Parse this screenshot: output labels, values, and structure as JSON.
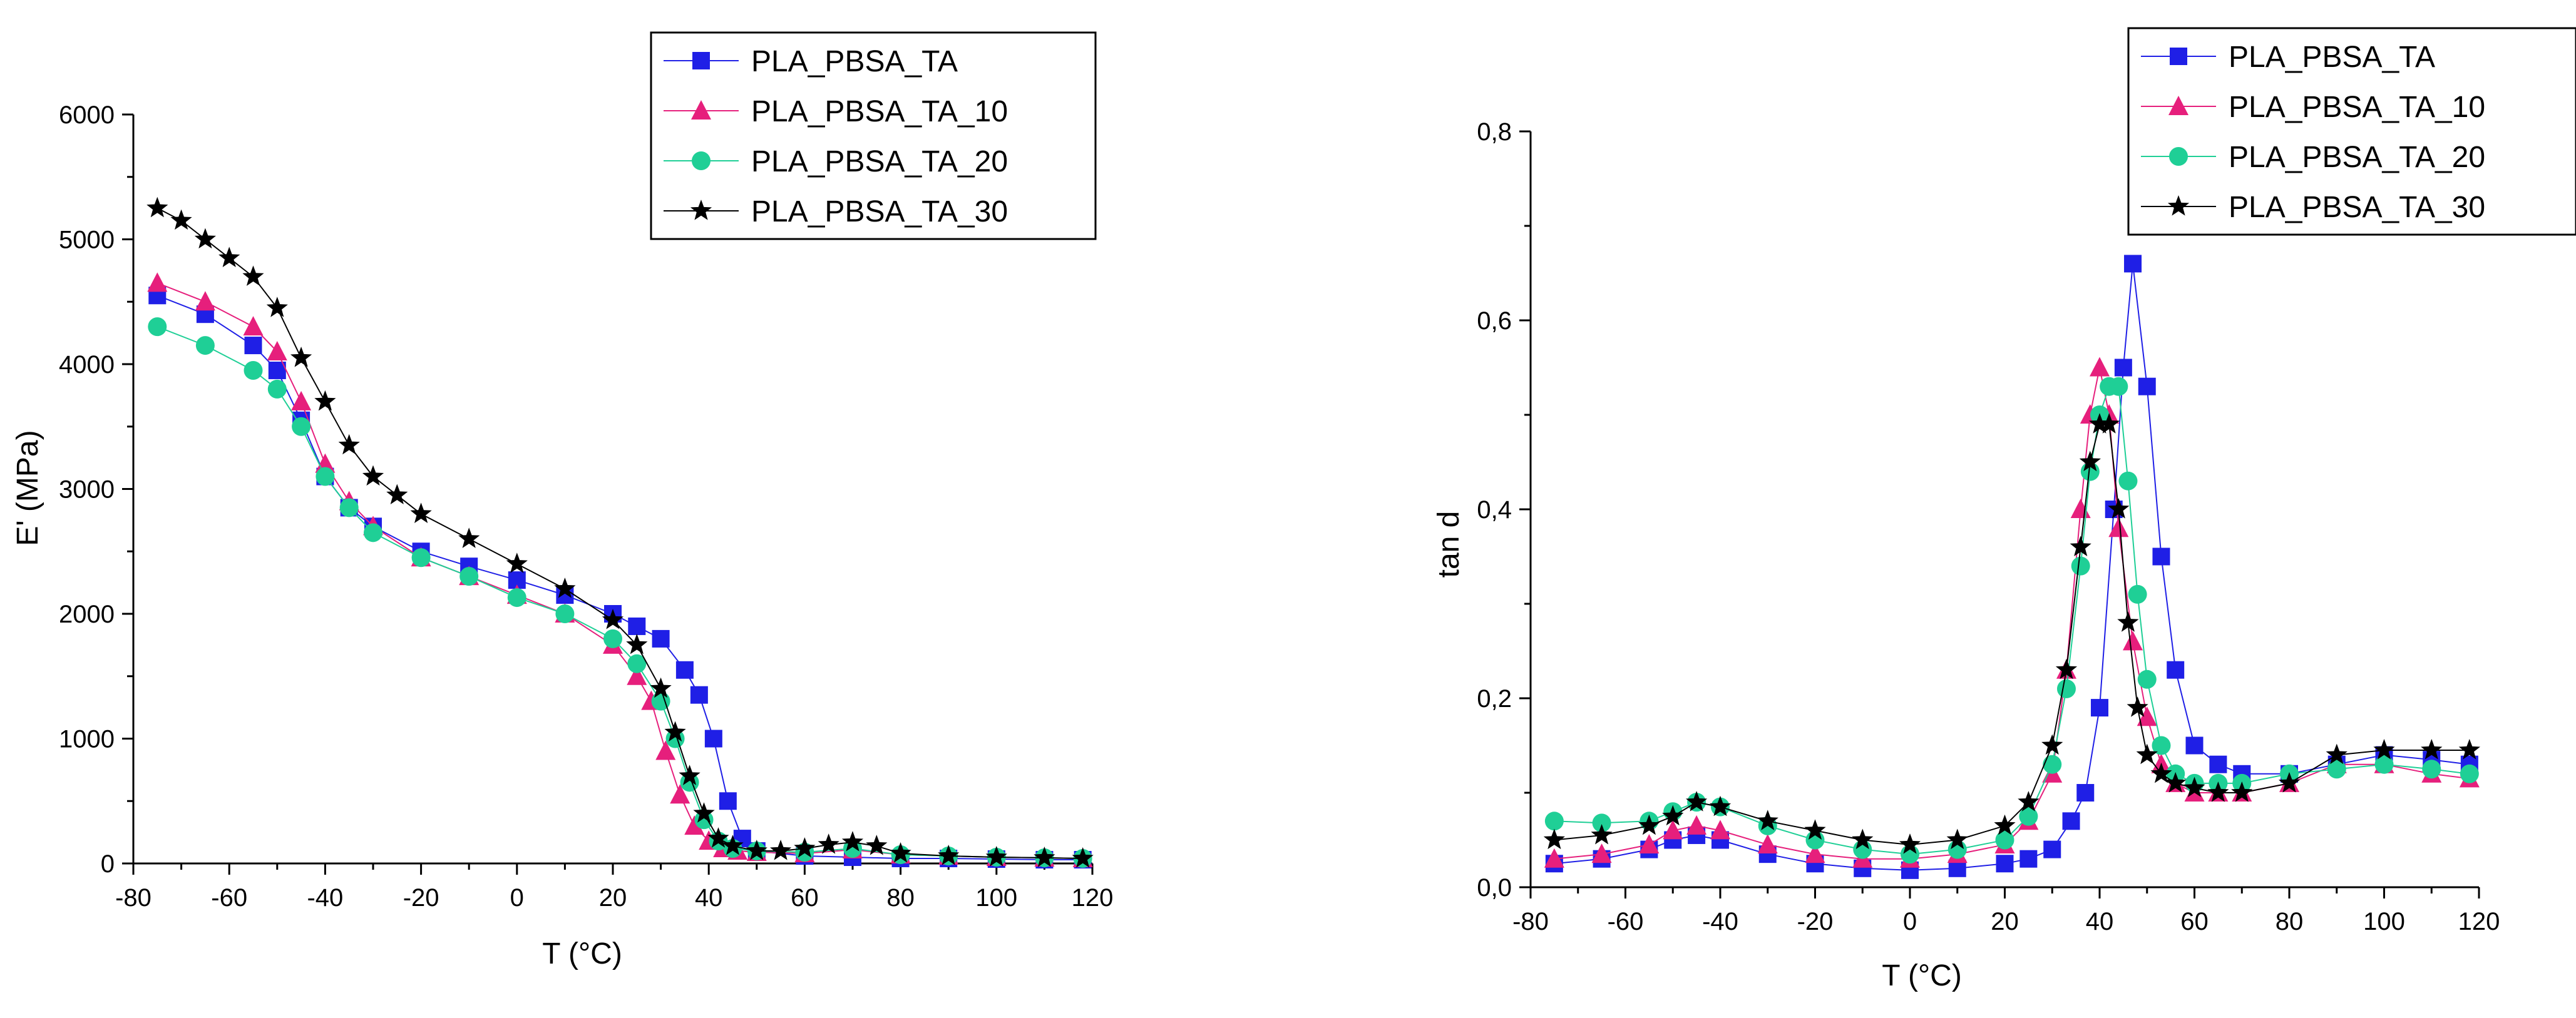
{
  "colors": {
    "PLA_PBSA_TA": "#1f1fe6",
    "PLA_PBSA_TA_10": "#e61f7c",
    "PLA_PBSA_TA_20": "#1fcf96",
    "PLA_PBSA_TA_30": "#000000"
  },
  "chart_data": [
    {
      "type": "line",
      "title": "",
      "xlabel": "T (°C)",
      "ylabel": "E' (MPa)",
      "xlim": [
        -80,
        120
      ],
      "ylim": [
        0,
        6000
      ],
      "xticks": [
        "-80",
        "-60",
        "-40",
        "-20",
        "0",
        "20",
        "40",
        "60",
        "80",
        "100",
        "120"
      ],
      "yticks": [
        "0",
        "1000",
        "2000",
        "3000",
        "4000",
        "5000",
        "6000"
      ],
      "legend_position": "top-right",
      "series": [
        {
          "name": "PLA_PBSA_TA",
          "marker": "square",
          "x": [
            -75,
            -65,
            -55,
            -50,
            -45,
            -40,
            -35,
            -30,
            -20,
            -10,
            0,
            10,
            20,
            25,
            30,
            35,
            38,
            41,
            44,
            47,
            50,
            60,
            70,
            80,
            90,
            100,
            110,
            118
          ],
          "y": [
            4550,
            4400,
            4150,
            3950,
            3550,
            3100,
            2850,
            2700,
            2500,
            2380,
            2270,
            2150,
            2000,
            1900,
            1800,
            1550,
            1350,
            1000,
            500,
            200,
            100,
            60,
            50,
            40,
            40,
            35,
            30,
            30
          ]
        },
        {
          "name": "PLA_PBSA_TA_10",
          "marker": "triangle",
          "x": [
            -75,
            -65,
            -55,
            -50,
            -45,
            -40,
            -35,
            -30,
            -20,
            -10,
            0,
            10,
            20,
            25,
            28,
            31,
            34,
            37,
            40,
            43,
            46,
            50,
            60,
            70,
            80,
            90,
            100,
            110,
            118
          ],
          "y": [
            4650,
            4500,
            4300,
            4100,
            3700,
            3200,
            2900,
            2700,
            2450,
            2300,
            2150,
            2000,
            1750,
            1500,
            1300,
            900,
            550,
            300,
            180,
            120,
            100,
            90,
            80,
            110,
            70,
            60,
            50,
            45,
            40
          ]
        },
        {
          "name": "PLA_PBSA_TA_20",
          "marker": "circle",
          "x": [
            -75,
            -65,
            -55,
            -50,
            -45,
            -40,
            -35,
            -30,
            -20,
            -10,
            0,
            10,
            20,
            25,
            30,
            33,
            36,
            39,
            42,
            45,
            50,
            60,
            70,
            80,
            90,
            100,
            110,
            118
          ],
          "y": [
            4300,
            4150,
            3950,
            3800,
            3500,
            3100,
            2850,
            2650,
            2450,
            2300,
            2130,
            2000,
            1800,
            1600,
            1300,
            1000,
            650,
            350,
            180,
            120,
            100,
            90,
            120,
            70,
            60,
            50,
            45,
            40
          ]
        },
        {
          "name": "PLA_PBSA_TA_30",
          "marker": "star",
          "x": [
            -75,
            -70,
            -65,
            -60,
            -55,
            -50,
            -45,
            -40,
            -35,
            -30,
            -25,
            -20,
            -10,
            0,
            10,
            20,
            25,
            30,
            33,
            36,
            39,
            42,
            45,
            50,
            55,
            60,
            65,
            70,
            75,
            80,
            90,
            100,
            110,
            118
          ],
          "y": [
            5250,
            5150,
            5000,
            4850,
            4700,
            4450,
            4050,
            3700,
            3350,
            3100,
            2950,
            2800,
            2600,
            2400,
            2200,
            1950,
            1750,
            1400,
            1050,
            700,
            400,
            200,
            140,
            100,
            100,
            120,
            150,
            170,
            140,
            80,
            60,
            50,
            45,
            40
          ]
        }
      ]
    },
    {
      "type": "line",
      "title": "",
      "xlabel": "T (°C)",
      "ylabel": "tan d",
      "xlim": [
        -80,
        120
      ],
      "ylim": [
        0,
        0.8
      ],
      "xticks": [
        "-80",
        "-60",
        "-40",
        "-20",
        "0",
        "20",
        "40",
        "60",
        "80",
        "100",
        "120"
      ],
      "yticks": [
        "0,0",
        "0,2",
        "0,4",
        "0,6",
        "0,8"
      ],
      "legend_position": "top-right",
      "series": [
        {
          "name": "PLA_PBSA_TA",
          "marker": "square",
          "x": [
            -75,
            -65,
            -55,
            -50,
            -45,
            -40,
            -30,
            -20,
            -10,
            0,
            10,
            20,
            25,
            30,
            34,
            37,
            40,
            43,
            45,
            47,
            50,
            53,
            56,
            60,
            65,
            70,
            80,
            90,
            100,
            110,
            118
          ],
          "y": [
            0.025,
            0.03,
            0.04,
            0.05,
            0.055,
            0.05,
            0.035,
            0.025,
            0.02,
            0.018,
            0.02,
            0.025,
            0.03,
            0.04,
            0.07,
            0.1,
            0.19,
            0.4,
            0.55,
            0.66,
            0.53,
            0.35,
            0.23,
            0.15,
            0.13,
            0.12,
            0.12,
            0.13,
            0.14,
            0.135,
            0.13
          ]
        },
        {
          "name": "PLA_PBSA_TA_10",
          "marker": "triangle",
          "x": [
            -75,
            -65,
            -55,
            -50,
            -45,
            -40,
            -30,
            -20,
            -10,
            0,
            10,
            20,
            25,
            30,
            33,
            36,
            38,
            40,
            42,
            44,
            47,
            50,
            53,
            56,
            60,
            65,
            70,
            80,
            90,
            100,
            110,
            118
          ],
          "y": [
            0.03,
            0.035,
            0.045,
            0.06,
            0.065,
            0.06,
            0.045,
            0.035,
            0.03,
            0.03,
            0.035,
            0.045,
            0.07,
            0.12,
            0.23,
            0.4,
            0.5,
            0.55,
            0.5,
            0.38,
            0.26,
            0.18,
            0.13,
            0.11,
            0.1,
            0.1,
            0.1,
            0.11,
            0.13,
            0.13,
            0.12,
            0.115
          ]
        },
        {
          "name": "PLA_PBSA_TA_20",
          "marker": "circle",
          "x": [
            -75,
            -65,
            -55,
            -50,
            -45,
            -40,
            -30,
            -20,
            -10,
            0,
            10,
            20,
            25,
            30,
            33,
            36,
            38,
            40,
            42,
            44,
            46,
            48,
            50,
            53,
            56,
            60,
            65,
            70,
            80,
            90,
            100,
            110,
            118
          ],
          "y": [
            0.07,
            0.068,
            0.07,
            0.08,
            0.09,
            0.085,
            0.065,
            0.05,
            0.04,
            0.035,
            0.04,
            0.05,
            0.075,
            0.13,
            0.21,
            0.34,
            0.44,
            0.5,
            0.53,
            0.53,
            0.43,
            0.31,
            0.22,
            0.15,
            0.12,
            0.11,
            0.11,
            0.11,
            0.12,
            0.125,
            0.13,
            0.125,
            0.12
          ]
        },
        {
          "name": "PLA_PBSA_TA_30",
          "marker": "star",
          "x": [
            -75,
            -65,
            -55,
            -50,
            -45,
            -40,
            -30,
            -20,
            -10,
            0,
            10,
            20,
            25,
            30,
            33,
            36,
            38,
            40,
            42,
            44,
            46,
            48,
            50,
            53,
            56,
            60,
            65,
            70,
            80,
            90,
            100,
            110,
            118
          ],
          "y": [
            0.05,
            0.055,
            0.065,
            0.075,
            0.09,
            0.085,
            0.07,
            0.06,
            0.05,
            0.045,
            0.05,
            0.065,
            0.09,
            0.15,
            0.23,
            0.36,
            0.45,
            0.49,
            0.49,
            0.4,
            0.28,
            0.19,
            0.14,
            0.12,
            0.11,
            0.105,
            0.1,
            0.1,
            0.11,
            0.14,
            0.145,
            0.145,
            0.145
          ]
        }
      ]
    }
  ]
}
